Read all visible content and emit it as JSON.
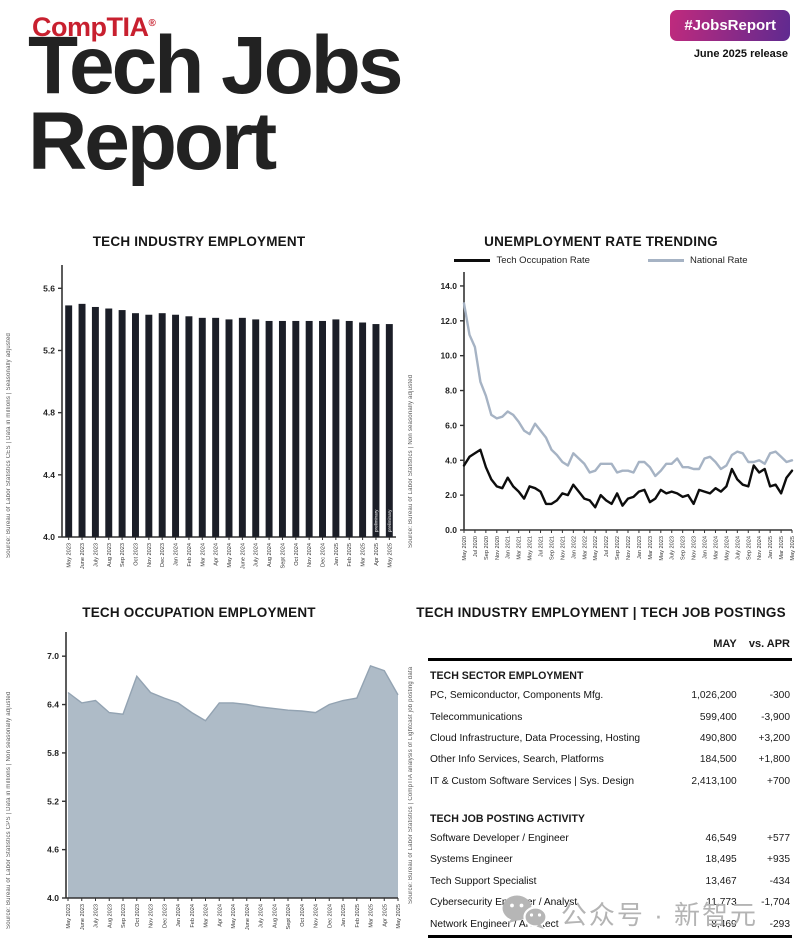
{
  "header": {
    "logo": "CompTIA",
    "logo_mark": "®",
    "title_line1": "Tech Jobs",
    "title_line2": "Report",
    "badge": "#JobsReport",
    "release": "June 2025 release",
    "brand_red": "#c8202f",
    "badge_gradient_start": "#c02a7d",
    "badge_gradient_end": "#5f2a90"
  },
  "colors": {
    "bar": "#1b1e27",
    "tech_line": "#0d0d0d",
    "national_line": "#a6b3c4",
    "area_fill": "#aebbc7",
    "area_edge": "#93a3b2",
    "axis": "#333333",
    "tick_text": "#222222"
  },
  "chart_data": [
    {
      "id": "tech_industry_employment",
      "type": "bar",
      "title": "TECH INDUSTRY EMPLOYMENT",
      "source": "Source: Bureau of Labor Statistics CES | Data in millions | Seasonally adjusted",
      "ylim": [
        4.0,
        5.75
      ],
      "yticks": [
        4.0,
        4.4,
        4.8,
        5.2,
        5.6
      ],
      "categories": [
        "May 2023",
        "June 2023",
        "July 2023",
        "Aug 2023",
        "Sep 2023",
        "Oct 2023",
        "Nov 2023",
        "Dec 2023",
        "Jan 2024",
        "Feb 2024",
        "Mar 2024",
        "Apr 2024",
        "May 2024",
        "June 2024",
        "July 2024",
        "Aug 2024",
        "Sept 2024",
        "Oct 2024",
        "Nov 2024",
        "Dec 2024",
        "Jan 2025",
        "Feb 2025",
        "Mar 2025",
        "Apr 2025",
        "May 2025"
      ],
      "values": [
        5.49,
        5.5,
        5.48,
        5.47,
        5.46,
        5.44,
        5.43,
        5.44,
        5.43,
        5.42,
        5.41,
        5.41,
        5.4,
        5.41,
        5.4,
        5.39,
        5.39,
        5.39,
        5.39,
        5.39,
        5.4,
        5.39,
        5.38,
        5.37,
        5.37
      ],
      "bar_notes": {
        "23": "preliminary",
        "24": "preliminary"
      }
    },
    {
      "id": "unemployment_rate_trending",
      "type": "line",
      "title": "UNEMPLOYMENT RATE TRENDING",
      "source": "Source: Bureau of Labor Statistics | Non seasonally adjusted",
      "ylim": [
        0,
        14.8
      ],
      "yticks": [
        0.0,
        2.0,
        4.0,
        6.0,
        8.0,
        10.0,
        12.0,
        14.0
      ],
      "n_points": 61,
      "xtick_every": 2,
      "xtick_labels": [
        "May 2020",
        "Jul 2020",
        "Sep 2020",
        "Nov 2020",
        "Jan 2021",
        "Mar 2021",
        "May 2021",
        "Jul 2021",
        "Sep 2021",
        "Nov 2021",
        "Jan 2022",
        "Mar 2022",
        "May 2022",
        "Jul 2022",
        "Sep 2022",
        "Nov 2022",
        "Jan 2023",
        "Mar 2023",
        "May 2023",
        "July 2023",
        "Sep 2023",
        "Nov 2023",
        "Jan 2024",
        "Mar 2024",
        "May 2024",
        "July 2024",
        "Sep 2024",
        "Nov 2024",
        "Jan 2025",
        "Mar 2025",
        "May 2025"
      ],
      "legend_position": "top",
      "series": [
        {
          "name": "Tech Occupation Rate",
          "color_key": "tech_line",
          "values": [
            3.7,
            4.2,
            4.4,
            4.6,
            3.6,
            2.9,
            2.5,
            2.4,
            3.0,
            2.5,
            2.2,
            1.8,
            2.5,
            2.4,
            2.2,
            1.5,
            1.5,
            1.7,
            2.1,
            2.0,
            2.6,
            2.2,
            1.8,
            1.7,
            1.3,
            2.0,
            1.7,
            1.5,
            2.1,
            1.4,
            1.8,
            1.9,
            2.2,
            2.3,
            1.6,
            1.8,
            2.3,
            2.1,
            2.2,
            2.1,
            1.9,
            2.0,
            1.5,
            2.3,
            2.2,
            2.1,
            2.4,
            2.2,
            2.5,
            3.5,
            2.9,
            2.6,
            2.5,
            3.7,
            3.3,
            3.5,
            2.5,
            2.6,
            2.1,
            3.0,
            3.4
          ]
        },
        {
          "name": "National Rate",
          "color_key": "national_line",
          "values": [
            13.0,
            11.2,
            10.5,
            8.5,
            7.7,
            6.6,
            6.4,
            6.5,
            6.8,
            6.6,
            6.2,
            5.7,
            5.5,
            6.1,
            5.7,
            5.3,
            4.6,
            4.3,
            3.9,
            3.7,
            4.4,
            4.1,
            3.8,
            3.3,
            3.4,
            3.8,
            3.8,
            3.8,
            3.3,
            3.4,
            3.4,
            3.3,
            3.9,
            3.9,
            3.6,
            3.1,
            3.4,
            3.8,
            3.8,
            4.1,
            3.6,
            3.6,
            3.5,
            3.5,
            4.1,
            4.2,
            3.9,
            3.5,
            3.7,
            4.3,
            4.5,
            4.4,
            3.9,
            3.9,
            4.0,
            3.8,
            4.4,
            4.5,
            4.2,
            3.9,
            4.0
          ]
        }
      ]
    },
    {
      "id": "tech_occupation_employment",
      "type": "area",
      "title": "TECH OCCUPATION EMPLOYMENT",
      "source": "Source: Bureau of Labor Statistics CPS | Data in millions | Non seasonally adjusted",
      "ylim": [
        4.0,
        7.3
      ],
      "yticks": [
        4.0,
        4.6,
        5.2,
        5.8,
        6.4,
        7.0
      ],
      "categories": [
        "May 2023",
        "June 2023",
        "July 2023",
        "Aug 2023",
        "Sep 2023",
        "Oct 2023",
        "Nov 2023",
        "Dec 2023",
        "Jan 2024",
        "Feb 2024",
        "Mar 2024",
        "Apr 2024",
        "May 2024",
        "June 2024",
        "July 2024",
        "Aug 2024",
        "Sept 2024",
        "Oct 2024",
        "Nov 2024",
        "Dec 2024",
        "Jan 2025",
        "Feb 2025",
        "Mar 2025",
        "Apr 2025",
        "May 2025"
      ],
      "values": [
        6.55,
        6.42,
        6.45,
        6.3,
        6.28,
        6.75,
        6.55,
        6.48,
        6.42,
        6.3,
        6.2,
        6.42,
        6.42,
        6.4,
        6.37,
        6.35,
        6.33,
        6.32,
        6.3,
        6.4,
        6.45,
        6.48,
        6.88,
        6.82,
        6.52
      ]
    },
    {
      "id": "employment_postings_table",
      "type": "table",
      "title": "TECH INDUSTRY EMPLOYMENT | TECH JOB POSTINGS",
      "source": "Source: Bureau of Labor Statistics | CompTIA analysis of Lightcast job posting data",
      "columns": [
        "",
        "MAY",
        "vs. APR"
      ],
      "sections": [
        {
          "heading": "TECH SECTOR EMPLOYMENT",
          "rows": [
            [
              "PC, Semiconductor, Components Mfg.",
              "1,026,200",
              "-300"
            ],
            [
              "Telecommunications",
              "599,400",
              "-3,900"
            ],
            [
              "Cloud Infrastructure, Data Processing, Hosting",
              "490,800",
              "+3,200"
            ],
            [
              "Other Info Services, Search, Platforms",
              "184,500",
              "+1,800"
            ],
            [
              "IT & Custom Software Services | Sys. Design",
              "2,413,100",
              "+700"
            ]
          ]
        },
        {
          "heading": "TECH JOB POSTING ACTIVITY",
          "rows": [
            [
              "Software Developer / Engineer",
              "46,549",
              "+577"
            ],
            [
              "Systems Engineer",
              "18,495",
              "+935"
            ],
            [
              "Tech Support Specialist",
              "13,467",
              "-434"
            ],
            [
              "Cybersecurity Engineer / Analyst",
              "11,773",
              "-1,704"
            ],
            [
              "Network Engineer / Architect",
              "8,469",
              "-293"
            ]
          ]
        }
      ]
    }
  ],
  "footer": {
    "watermark": "公众号 · 新智元"
  }
}
